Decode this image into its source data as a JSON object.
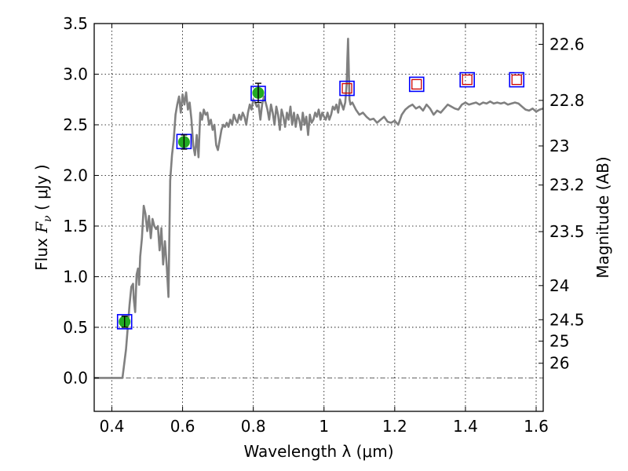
{
  "chart_data": {
    "type": "scatter",
    "xlabel": "Wavelength  λ (μm)",
    "ylabel_main": "Flux  ",
    "ylabel_symbol": "F",
    "ylabel_sub": "ν",
    "ylabel_unit": " ( μJy )",
    "y2label": "Magnitude (AB)",
    "xlim": [
      0.35,
      1.62
    ],
    "ylim": [
      -0.33,
      3.5
    ],
    "grid": true,
    "xticks": [
      0.4,
      0.6,
      0.8,
      1.0,
      1.2,
      1.4,
      1.6
    ],
    "xtick_labels": [
      "0.4",
      "0.6",
      "0.8",
      "1",
      "1.2",
      "1.4",
      "1.6"
    ],
    "yticks": [
      0.0,
      0.5,
      1.0,
      1.5,
      2.0,
      2.5,
      3.0,
      3.5
    ],
    "ytick_labels": [
      "0.0",
      "0.5",
      "1.0",
      "1.5",
      "2.0",
      "2.5",
      "3.0",
      "3.5"
    ],
    "y2ticks": [
      {
        "label": "22.6",
        "flux": 3.295
      },
      {
        "label": "22.8",
        "flux": 2.741
      },
      {
        "label": "23",
        "flux": 2.291
      },
      {
        "label": "23.2",
        "flux": 1.905
      },
      {
        "label": "23.5",
        "flux": 1.445
      },
      {
        "label": "24",
        "flux": 0.912
      },
      {
        "label": "24.5",
        "flux": 0.575
      },
      {
        "label": "25",
        "flux": 0.363
      },
      {
        "label": "26",
        "flux": 0.145
      }
    ],
    "colors": {
      "spectrum": "#808080",
      "model_box": "#0000ff",
      "upper_box": "#cc0000",
      "observed": "#22aa22",
      "errorbar": "#000000"
    },
    "model_points": [
      {
        "x": 0.436,
        "y": 0.555
      },
      {
        "x": 0.604,
        "y": 2.335
      },
      {
        "x": 0.814,
        "y": 2.81
      },
      {
        "x": 1.065,
        "y": 2.86
      },
      {
        "x": 1.262,
        "y": 2.9
      },
      {
        "x": 1.405,
        "y": 2.945
      },
      {
        "x": 1.545,
        "y": 2.945
      }
    ],
    "upper_points": [
      {
        "x": 1.065,
        "y": 2.86
      },
      {
        "x": 1.262,
        "y": 2.9
      },
      {
        "x": 1.405,
        "y": 2.945
      },
      {
        "x": 1.545,
        "y": 2.945
      }
    ],
    "observed_points": [
      {
        "x": 0.436,
        "y": 0.555,
        "err": 0.055
      },
      {
        "x": 0.604,
        "y": 2.33,
        "err": 0.07
      },
      {
        "x": 0.814,
        "y": 2.815,
        "err": 0.095
      }
    ],
    "spectrum": [
      [
        0.35,
        0.0
      ],
      [
        0.43,
        0.0
      ],
      [
        0.44,
        0.28
      ],
      [
        0.445,
        0.5
      ],
      [
        0.45,
        0.72
      ],
      [
        0.455,
        0.9
      ],
      [
        0.46,
        0.93
      ],
      [
        0.462,
        0.78
      ],
      [
        0.466,
        0.65
      ],
      [
        0.47,
        1.02
      ],
      [
        0.474,
        1.08
      ],
      [
        0.477,
        0.92
      ],
      [
        0.48,
        1.2
      ],
      [
        0.485,
        1.38
      ],
      [
        0.49,
        1.7
      ],
      [
        0.495,
        1.62
      ],
      [
        0.5,
        1.45
      ],
      [
        0.505,
        1.6
      ],
      [
        0.51,
        1.38
      ],
      [
        0.515,
        1.57
      ],
      [
        0.52,
        1.5
      ],
      [
        0.525,
        1.47
      ],
      [
        0.53,
        1.5
      ],
      [
        0.535,
        1.26
      ],
      [
        0.54,
        1.48
      ],
      [
        0.545,
        1.12
      ],
      [
        0.55,
        1.35
      ],
      [
        0.555,
        1.12
      ],
      [
        0.56,
        0.8
      ],
      [
        0.565,
        1.95
      ],
      [
        0.57,
        2.2
      ],
      [
        0.575,
        2.35
      ],
      [
        0.58,
        2.6
      ],
      [
        0.585,
        2.7
      ],
      [
        0.59,
        2.78
      ],
      [
        0.595,
        2.62
      ],
      [
        0.6,
        2.8
      ],
      [
        0.605,
        2.7
      ],
      [
        0.61,
        2.82
      ],
      [
        0.615,
        2.65
      ],
      [
        0.62,
        2.72
      ],
      [
        0.625,
        2.55
      ],
      [
        0.63,
        2.3
      ],
      [
        0.635,
        2.2
      ],
      [
        0.64,
        2.4
      ],
      [
        0.645,
        2.18
      ],
      [
        0.65,
        2.62
      ],
      [
        0.655,
        2.55
      ],
      [
        0.66,
        2.65
      ],
      [
        0.665,
        2.6
      ],
      [
        0.67,
        2.62
      ],
      [
        0.675,
        2.5
      ],
      [
        0.68,
        2.55
      ],
      [
        0.685,
        2.45
      ],
      [
        0.69,
        2.5
      ],
      [
        0.695,
        2.3
      ],
      [
        0.7,
        2.25
      ],
      [
        0.705,
        2.35
      ],
      [
        0.71,
        2.45
      ],
      [
        0.715,
        2.5
      ],
      [
        0.72,
        2.48
      ],
      [
        0.725,
        2.52
      ],
      [
        0.73,
        2.48
      ],
      [
        0.735,
        2.55
      ],
      [
        0.74,
        2.5
      ],
      [
        0.745,
        2.6
      ],
      [
        0.75,
        2.55
      ],
      [
        0.755,
        2.52
      ],
      [
        0.76,
        2.6
      ],
      [
        0.765,
        2.55
      ],
      [
        0.77,
        2.62
      ],
      [
        0.775,
        2.58
      ],
      [
        0.78,
        2.5
      ],
      [
        0.785,
        2.62
      ],
      [
        0.79,
        2.7
      ],
      [
        0.795,
        2.65
      ],
      [
        0.8,
        2.75
      ],
      [
        0.805,
        2.72
      ],
      [
        0.81,
        2.68
      ],
      [
        0.815,
        2.7
      ],
      [
        0.82,
        2.55
      ],
      [
        0.825,
        2.7
      ],
      [
        0.83,
        2.78
      ],
      [
        0.835,
        2.72
      ],
      [
        0.84,
        2.65
      ],
      [
        0.845,
        2.55
      ],
      [
        0.85,
        2.7
      ],
      [
        0.855,
        2.62
      ],
      [
        0.86,
        2.5
      ],
      [
        0.865,
        2.68
      ],
      [
        0.87,
        2.6
      ],
      [
        0.875,
        2.45
      ],
      [
        0.88,
        2.65
      ],
      [
        0.885,
        2.58
      ],
      [
        0.89,
        2.48
      ],
      [
        0.895,
        2.62
      ],
      [
        0.9,
        2.55
      ],
      [
        0.905,
        2.68
      ],
      [
        0.91,
        2.5
      ],
      [
        0.915,
        2.62
      ],
      [
        0.92,
        2.48
      ],
      [
        0.925,
        2.6
      ],
      [
        0.93,
        2.55
      ],
      [
        0.935,
        2.45
      ],
      [
        0.94,
        2.62
      ],
      [
        0.945,
        2.5
      ],
      [
        0.95,
        2.58
      ],
      [
        0.955,
        2.4
      ],
      [
        0.96,
        2.6
      ],
      [
        0.965,
        2.52
      ],
      [
        0.97,
        2.55
      ],
      [
        0.975,
        2.62
      ],
      [
        0.98,
        2.58
      ],
      [
        0.985,
        2.65
      ],
      [
        0.99,
        2.55
      ],
      [
        0.995,
        2.62
      ],
      [
        1.0,
        2.58
      ],
      [
        1.005,
        2.55
      ],
      [
        1.01,
        2.62
      ],
      [
        1.015,
        2.55
      ],
      [
        1.02,
        2.6
      ],
      [
        1.025,
        2.68
      ],
      [
        1.03,
        2.65
      ],
      [
        1.035,
        2.7
      ],
      [
        1.04,
        2.62
      ],
      [
        1.045,
        2.75
      ],
      [
        1.05,
        2.7
      ],
      [
        1.055,
        2.65
      ],
      [
        1.06,
        2.72
      ],
      [
        1.064,
        2.9
      ],
      [
        1.066,
        3.15
      ],
      [
        1.068,
        3.35
      ],
      [
        1.07,
        3.05
      ],
      [
        1.072,
        2.75
      ],
      [
        1.075,
        2.7
      ],
      [
        1.08,
        2.72
      ],
      [
        1.09,
        2.65
      ],
      [
        1.1,
        2.6
      ],
      [
        1.11,
        2.62
      ],
      [
        1.12,
        2.58
      ],
      [
        1.13,
        2.55
      ],
      [
        1.14,
        2.56
      ],
      [
        1.15,
        2.52
      ],
      [
        1.16,
        2.55
      ],
      [
        1.17,
        2.58
      ],
      [
        1.18,
        2.53
      ],
      [
        1.19,
        2.52
      ],
      [
        1.2,
        2.54
      ],
      [
        1.21,
        2.5
      ],
      [
        1.22,
        2.6
      ],
      [
        1.23,
        2.65
      ],
      [
        1.24,
        2.68
      ],
      [
        1.25,
        2.7
      ],
      [
        1.26,
        2.66
      ],
      [
        1.27,
        2.68
      ],
      [
        1.28,
        2.64
      ],
      [
        1.29,
        2.7
      ],
      [
        1.3,
        2.66
      ],
      [
        1.31,
        2.6
      ],
      [
        1.32,
        2.64
      ],
      [
        1.33,
        2.62
      ],
      [
        1.34,
        2.66
      ],
      [
        1.35,
        2.7
      ],
      [
        1.36,
        2.68
      ],
      [
        1.37,
        2.66
      ],
      [
        1.38,
        2.65
      ],
      [
        1.39,
        2.7
      ],
      [
        1.4,
        2.72
      ],
      [
        1.41,
        2.7
      ],
      [
        1.42,
        2.71
      ],
      [
        1.43,
        2.72
      ],
      [
        1.44,
        2.7
      ],
      [
        1.45,
        2.72
      ],
      [
        1.46,
        2.71
      ],
      [
        1.47,
        2.73
      ],
      [
        1.48,
        2.71
      ],
      [
        1.49,
        2.72
      ],
      [
        1.5,
        2.71
      ],
      [
        1.51,
        2.72
      ],
      [
        1.52,
        2.7
      ],
      [
        1.53,
        2.71
      ],
      [
        1.54,
        2.72
      ],
      [
        1.55,
        2.71
      ],
      [
        1.56,
        2.68
      ],
      [
        1.57,
        2.65
      ],
      [
        1.58,
        2.64
      ],
      [
        1.59,
        2.66
      ],
      [
        1.6,
        2.63
      ],
      [
        1.61,
        2.65
      ],
      [
        1.62,
        2.66
      ]
    ]
  }
}
